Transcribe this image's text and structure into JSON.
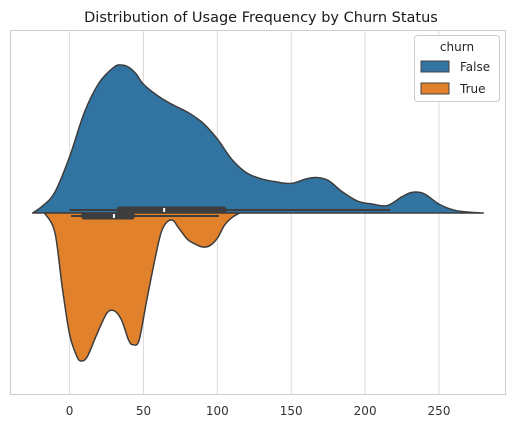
{
  "chart_data": {
    "type": "violin",
    "title": "Distribution of Usage Frequency by Churn Status",
    "xlabel": "",
    "ylabel": "",
    "xlim": [
      -40,
      295
    ],
    "xticks": [
      0,
      50,
      100,
      150,
      200,
      250
    ],
    "grid": "vertical",
    "split": true,
    "legend": {
      "title": "churn",
      "placement": "top-right"
    },
    "series": [
      {
        "name": "False",
        "color": "#3274a1",
        "side": "upper",
        "density_x": [
          -25,
          -18,
          -10,
          0,
          10,
          20,
          30,
          35,
          40,
          45,
          50,
          60,
          70,
          80,
          90,
          100,
          110,
          120,
          130,
          140,
          150,
          160,
          167,
          175,
          185,
          195,
          205,
          215,
          225,
          232,
          240,
          250,
          260,
          270,
          280
        ],
        "density": [
          0.0,
          0.05,
          0.14,
          0.38,
          0.68,
          0.88,
          0.985,
          1.0,
          0.985,
          0.94,
          0.87,
          0.79,
          0.73,
          0.68,
          0.61,
          0.5,
          0.36,
          0.27,
          0.23,
          0.21,
          0.2,
          0.23,
          0.24,
          0.22,
          0.14,
          0.08,
          0.06,
          0.05,
          0.11,
          0.14,
          0.13,
          0.06,
          0.02,
          0.006,
          0.0
        ],
        "box": {
          "whisker_low": 0,
          "q1": 32,
          "median": 64,
          "q3": 106,
          "whisker_high": 217
        }
      },
      {
        "name": "True",
        "color": "#e1812c",
        "side": "lower",
        "density_x": [
          -17,
          -10,
          -5,
          0,
          5,
          8,
          12,
          18,
          25,
          30,
          35,
          40,
          43,
          47,
          52,
          58,
          62,
          66,
          70,
          73,
          76,
          80,
          85,
          90,
          95,
          100,
          105,
          110,
          115
        ],
        "density": [
          0.0,
          0.13,
          0.5,
          0.82,
          0.97,
          1.0,
          0.97,
          0.83,
          0.68,
          0.66,
          0.72,
          0.86,
          0.89,
          0.86,
          0.6,
          0.3,
          0.13,
          0.06,
          0.05,
          0.09,
          0.13,
          0.18,
          0.21,
          0.23,
          0.22,
          0.17,
          0.08,
          0.03,
          0.0
        ],
        "box": {
          "whisker_low": 1,
          "q1": 8,
          "median": 30,
          "q3": 44,
          "whisker_high": 101
        }
      }
    ]
  }
}
